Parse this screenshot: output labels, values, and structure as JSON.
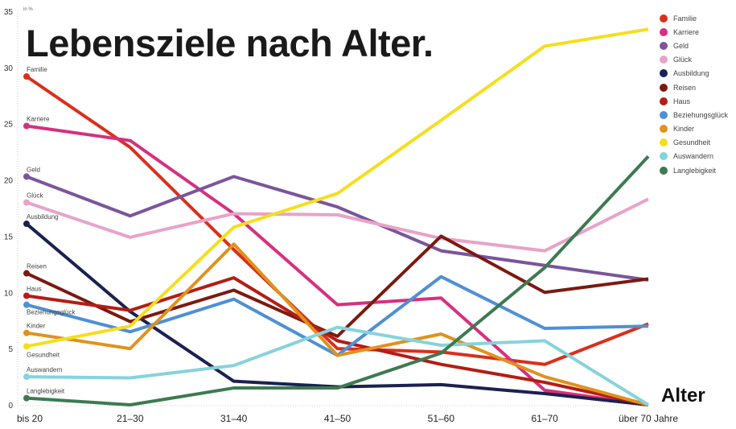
{
  "chart_data": {
    "type": "line",
    "title": "Lebensziele nach Alter.",
    "unit_label": "in %",
    "xlabel": "Alter",
    "ylabel": "",
    "categories": [
      "bis 20",
      "21–30",
      "31–40",
      "41–50",
      "51–60",
      "61–70",
      "über 70 Jahre"
    ],
    "ylim": [
      0,
      35
    ],
    "yticks": [
      0,
      5,
      10,
      15,
      20,
      25,
      30,
      35
    ],
    "grid": false,
    "legend_position": "top-right",
    "series": [
      {
        "name": "Familie",
        "color": "#d9301a",
        "values": [
          29.2,
          22.9,
          13.8,
          5.0,
          4.7,
          3.6,
          7.2
        ]
      },
      {
        "name": "Karriere",
        "color": "#d6307f",
        "values": [
          24.8,
          23.5,
          17.0,
          8.9,
          9.5,
          1.3,
          0
        ]
      },
      {
        "name": "Geld",
        "color": "#7a559c",
        "values": [
          20.3,
          16.8,
          20.3,
          17.6,
          13.7,
          12.4,
          11.1
        ]
      },
      {
        "name": "Glück",
        "color": "#e8a3c8",
        "values": [
          18.0,
          14.9,
          17.0,
          16.9,
          14.8,
          13.7,
          18.3
        ]
      },
      {
        "name": "Ausbildung",
        "color": "#1b2150",
        "values": [
          16.1,
          8.3,
          2.1,
          1.6,
          1.8,
          1.0,
          0
        ]
      },
      {
        "name": "Reisen",
        "color": "#7b1a10",
        "values": [
          11.7,
          7.4,
          10.2,
          6.1,
          15.0,
          10.0,
          11.2
        ]
      },
      {
        "name": "Haus",
        "color": "#b51c14",
        "values": [
          9.7,
          8.4,
          11.3,
          5.7,
          3.6,
          2.0,
          0
        ]
      },
      {
        "name": "Beziehungsglück",
        "color": "#4f8fd6",
        "values": [
          8.9,
          6.5,
          9.4,
          4.4,
          11.4,
          6.8,
          7.0
        ]
      },
      {
        "name": "Kinder",
        "color": "#e0921d",
        "values": [
          6.4,
          5.0,
          14.3,
          4.4,
          6.3,
          2.5,
          0
        ]
      },
      {
        "name": "Gesundheit",
        "color": "#f5de1d",
        "values": [
          5.2,
          7.0,
          15.8,
          18.8,
          25.3,
          31.9,
          33.4
        ]
      },
      {
        "name": "Auswandern",
        "color": "#86d3dc",
        "values": [
          2.5,
          2.4,
          3.5,
          6.9,
          5.3,
          5.7,
          0
        ]
      },
      {
        "name": "Langlebigkeit",
        "color": "#3d7a52",
        "values": [
          0.6,
          0,
          1.5,
          1.5,
          4.6,
          12.2,
          22.1
        ]
      }
    ]
  }
}
